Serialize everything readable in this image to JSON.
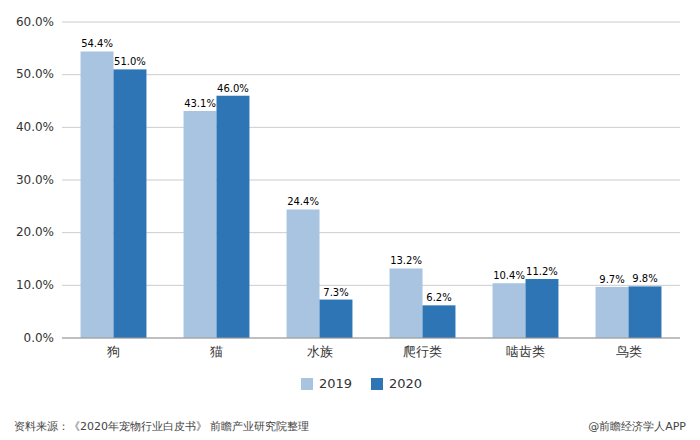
{
  "chart_data": {
    "type": "bar",
    "categories": [
      "狗",
      "猫",
      "水族",
      "爬行类",
      "啮齿类",
      "鸟类"
    ],
    "series": [
      {
        "name": "2019",
        "color": "#a8c4e0",
        "values": [
          54.4,
          43.1,
          24.4,
          13.2,
          10.4,
          9.7
        ],
        "value_labels": [
          "54.4%",
          "43.1%",
          "24.4%",
          "13.2%",
          "10.4%",
          "9.7%"
        ]
      },
      {
        "name": "2020",
        "color": "#2e75b6",
        "values": [
          51.0,
          46.0,
          7.3,
          6.2,
          11.2,
          9.8
        ],
        "value_labels": [
          "51.0%",
          "46.0%",
          "7.3%",
          "6.2%",
          "11.2%",
          "9.8%"
        ]
      }
    ],
    "ylim": [
      0,
      60
    ],
    "yticks": [
      {
        "value": 0,
        "label": "0.0%"
      },
      {
        "value": 10,
        "label": "10.0%"
      },
      {
        "value": 20,
        "label": "20.0%"
      },
      {
        "value": 30,
        "label": "30.0%"
      },
      {
        "value": 40,
        "label": "40.0%"
      },
      {
        "value": 50,
        "label": "50.0%"
      },
      {
        "value": 60,
        "label": "60.0%"
      }
    ],
    "grid": true,
    "legend": "bottom",
    "data_labels": true,
    "annotations": [
      "资料来源：《2020年宠物行业白皮书》 前瞻产业研究院整理",
      "@前瞻经济学人APP"
    ]
  }
}
